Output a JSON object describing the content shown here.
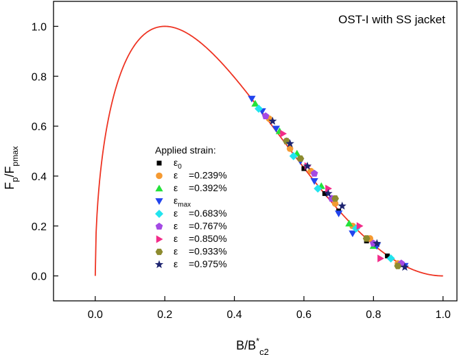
{
  "chart_data": {
    "type": "scatter",
    "title": "OST-I with SS jacket",
    "xlabel": {
      "main": "B/B",
      "sup": "*",
      "sub": "c2"
    },
    "ylabel": {
      "main": "F",
      "sub1": "p",
      "mid": "/F",
      "sub2": "pmax"
    },
    "xlim": [
      -0.12,
      1.04
    ],
    "ylim": [
      -0.1,
      1.1
    ],
    "x_ticks": [
      0.0,
      0.2,
      0.4,
      0.6,
      0.8,
      1.0
    ],
    "x_tick_labels": [
      "0.0",
      "0.2",
      "0.4",
      "0.6",
      "0.8",
      "1.0"
    ],
    "y_ticks": [
      0.0,
      0.2,
      0.4,
      0.6,
      0.8,
      1.0
    ],
    "y_tick_labels": [
      "0.0",
      "0.2",
      "0.4",
      "0.6",
      "0.8",
      "1.0"
    ],
    "grid": false,
    "legend_title": "Applied strain:",
    "legend_position": "center-left",
    "fit_curve": {
      "description": "scaling-law fit",
      "color": "#ee3322",
      "form": "b^p (1-b)^q normalized",
      "p": 0.5,
      "q": 2.0
    },
    "series": [
      {
        "symbol": "ε",
        "sub": "0",
        "label": "",
        "marker": "square",
        "color": "#000000",
        "points": [
          [
            0.56,
            0.51
          ],
          [
            0.6,
            0.43
          ],
          [
            0.66,
            0.33
          ],
          [
            0.7,
            0.26
          ],
          [
            0.74,
            0.2
          ],
          [
            0.78,
            0.14
          ],
          [
            0.84,
            0.08
          ],
          [
            0.88,
            0.045
          ]
        ]
      },
      {
        "symbol": "ε",
        "sub": "",
        "label": "=0.239%",
        "marker": "circle",
        "color": "#f59a32",
        "points": [
          [
            0.5,
            0.63
          ],
          [
            0.56,
            0.51
          ],
          [
            0.62,
            0.42
          ],
          [
            0.69,
            0.29
          ],
          [
            0.74,
            0.2
          ],
          [
            0.79,
            0.15
          ],
          [
            0.87,
            0.05
          ]
        ]
      },
      {
        "symbol": "ε",
        "sub": "",
        "label": "=0.392%",
        "marker": "triangle-up",
        "color": "#23e23a",
        "points": [
          [
            0.46,
            0.69
          ],
          [
            0.53,
            0.58
          ],
          [
            0.58,
            0.49
          ],
          [
            0.65,
            0.36
          ],
          [
            0.73,
            0.21
          ],
          [
            0.8,
            0.12
          ]
        ]
      },
      {
        "symbol": "ε",
        "sub": "max",
        "label": "",
        "marker": "triangle-down",
        "color": "#2244ee",
        "points": [
          [
            0.45,
            0.71
          ],
          [
            0.48,
            0.66
          ],
          [
            0.52,
            0.59
          ],
          [
            0.59,
            0.46
          ],
          [
            0.63,
            0.38
          ],
          [
            0.7,
            0.25
          ],
          [
            0.74,
            0.17
          ],
          [
            0.81,
            0.12
          ],
          [
            0.89,
            0.04
          ]
        ]
      },
      {
        "symbol": "ε",
        "sub": "",
        "label": "=0.683%",
        "marker": "diamond",
        "color": "#22e4ee",
        "points": [
          [
            0.47,
            0.67
          ],
          [
            0.57,
            0.48
          ],
          [
            0.64,
            0.35
          ],
          [
            0.75,
            0.19
          ],
          [
            0.85,
            0.07
          ]
        ]
      },
      {
        "symbol": "ε",
        "sub": "",
        "label": "=0.767%",
        "marker": "pentagon",
        "color": "#a44ae4",
        "points": [
          [
            0.49,
            0.64
          ],
          [
            0.55,
            0.54
          ],
          [
            0.63,
            0.41
          ],
          [
            0.68,
            0.31
          ],
          [
            0.8,
            0.13
          ],
          [
            0.88,
            0.05
          ]
        ]
      },
      {
        "symbol": "ε",
        "sub": "",
        "label": "=0.850%",
        "marker": "triangle-right",
        "color": "#f22b89",
        "points": [
          [
            0.54,
            0.57
          ],
          [
            0.61,
            0.44
          ],
          [
            0.67,
            0.35
          ],
          [
            0.76,
            0.2
          ],
          [
            0.82,
            0.07
          ]
        ]
      },
      {
        "symbol": "ε",
        "sub": "",
        "label": "=0.933%",
        "marker": "hexagon",
        "color": "#8d8b2f",
        "points": [
          [
            0.55,
            0.54
          ],
          [
            0.59,
            0.47
          ],
          [
            0.69,
            0.31
          ],
          [
            0.78,
            0.15
          ],
          [
            0.87,
            0.04
          ]
        ]
      },
      {
        "symbol": "ε",
        "sub": "",
        "label": "=0.975%",
        "marker": "star",
        "color": "#1d2470",
        "points": [
          [
            0.51,
            0.62
          ],
          [
            0.56,
            0.53
          ],
          [
            0.61,
            0.44
          ],
          [
            0.67,
            0.33
          ],
          [
            0.71,
            0.28
          ],
          [
            0.81,
            0.13
          ],
          [
            0.89,
            0.035
          ]
        ]
      }
    ]
  }
}
